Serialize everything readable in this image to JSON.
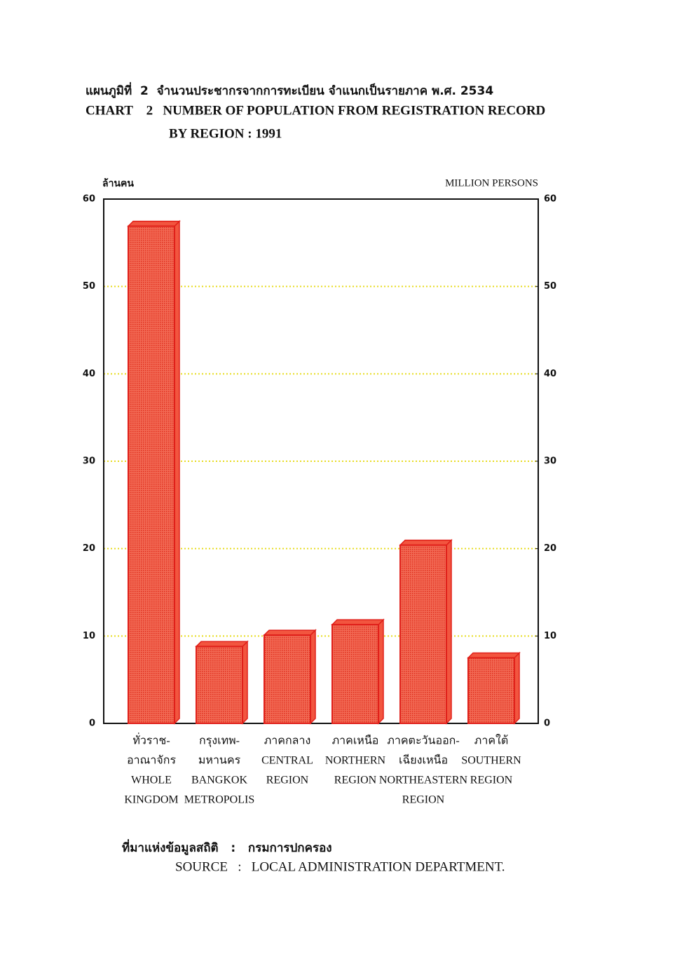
{
  "title_th": "แผนภูมิที่  2  จำนวนประชากรจากการทะเบียน จำแนกเป็นรายภาค พ.ศ. 2534",
  "source_th": "ที่มาแห่งข้อมูลสถิติ   :   กรมการปกครอง",
  "source": "SOURCE   :   LOCAL ADMINISTRATION DEPARTMENT.",
  "chart_data": {
    "type": "bar",
    "title": [
      "CHART    2   NUMBER OF POPULATION FROM REGISTRATION RECORD",
      "BY REGION : 1991"
    ],
    "y_label": "ล้านคน",
    "y2_label": "MILLION PERSONS",
    "categories": [
      [
        "ทั่วราช-",
        "อาณาจักร",
        "WHOLE",
        "KINGDOM"
      ],
      [
        "กรุงเทพ-",
        "มหานคร",
        "BANGKOK",
        "METROPOLIS"
      ],
      [
        "ภาคกลาง",
        "CENTRAL",
        "REGION"
      ],
      [
        "ภาคเหนือ",
        "NORTHERN",
        "REGION"
      ],
      [
        "ภาคตะวันออก-",
        "เฉียงเหนือ",
        "NORTHEASTERN",
        "REGION"
      ],
      [
        "ภาคใต้",
        "SOUTHERN",
        "REGION"
      ]
    ],
    "values": [
      56.9,
      8.8,
      10.1,
      11.3,
      20.4,
      7.5
    ],
    "color": "#f2553f",
    "ylim": [
      0,
      60
    ],
    "yticks": [
      0,
      10,
      20,
      30,
      40,
      50,
      60
    ],
    "y2lim": [
      0,
      60
    ],
    "y2ticks": [
      0,
      10,
      20,
      30,
      40,
      50,
      60
    ],
    "grid": true
  }
}
